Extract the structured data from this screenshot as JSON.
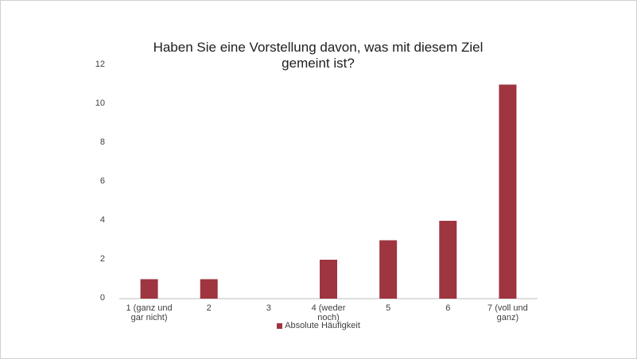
{
  "chart_data": {
    "type": "bar",
    "title": "Haben Sie eine Vorstellung davon, was mit diesem Ziel gemeint ist?",
    "categories": [
      "1 (ganz und gar nicht)",
      "2",
      "3",
      "4 (weder noch)",
      "5",
      "6",
      "7 (voll und ganz)"
    ],
    "series": [
      {
        "name": "Absolute Häufigkeit",
        "color": "#9e3540",
        "values": [
          1,
          1,
          0,
          2,
          3,
          4,
          11
        ]
      }
    ],
    "ylim": [
      0,
      12
    ],
    "yticks": [
      0,
      2,
      4,
      6,
      8,
      10,
      12
    ],
    "grid": false,
    "legend": "bottom"
  }
}
